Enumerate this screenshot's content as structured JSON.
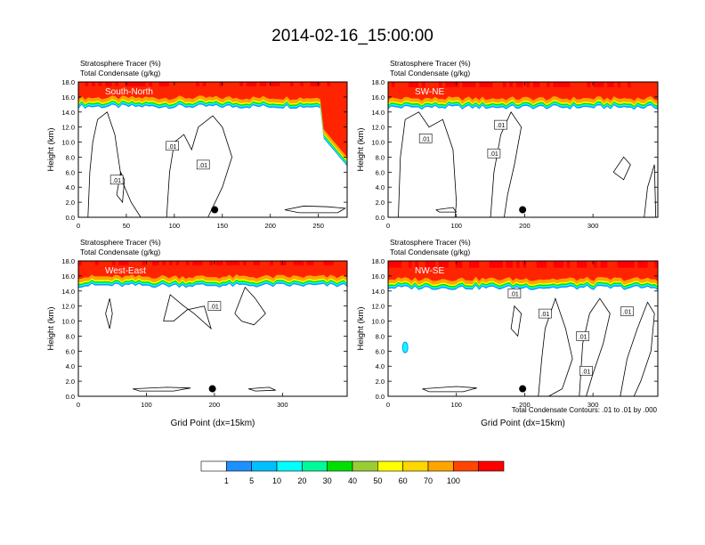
{
  "title": "2014-02-16_15:00:00",
  "contour_note": "Total Condensate Contours: .01 to .01 by .000",
  "colorbar": {
    "labels": [
      "1",
      "5",
      "10",
      "20",
      "30",
      "40",
      "50",
      "60",
      "70",
      "100"
    ],
    "colors": [
      "#ffffff",
      "#1e90ff",
      "#00bfff",
      "#00ffff",
      "#00fa9a",
      "#00e000",
      "#9acd32",
      "#ffff00",
      "#ffd700",
      "#ffa500",
      "#ff4500",
      "#ff0000"
    ]
  },
  "chart_data": [
    {
      "type": "heatmap",
      "panel": "top-left",
      "label": "South-North",
      "title_lines": [
        "Stratosphere Tracer   (%)",
        "Total Condensate   (g/kg)"
      ],
      "ylabel": "Height (km)",
      "xlabel": "",
      "xlim": [
        0,
        280
      ],
      "ylim": [
        0,
        18
      ],
      "xticks": [
        0,
        50,
        100,
        150,
        200,
        250
      ],
      "yticks": [
        "0.0",
        "2.0",
        "4.0",
        "6.0",
        "8.0",
        "10.0",
        "12.0",
        "14.0",
        "16.0",
        "18.0"
      ],
      "tracer_base_km": 15.6,
      "contour_labels": [
        ".01",
        ".01",
        ".01"
      ],
      "marker_x": 142
    },
    {
      "type": "heatmap",
      "panel": "top-right",
      "label": "SW-NE",
      "title_lines": [
        "Stratosphere Tracer   (%)",
        "Total Condensate   (g/kg)"
      ],
      "ylabel": "Height (km)",
      "xlabel": "",
      "xlim": [
        0,
        395
      ],
      "ylim": [
        0,
        18
      ],
      "xticks": [
        0,
        100,
        200,
        300
      ],
      "yticks": [
        "0.0",
        "2.0",
        "4.0",
        "6.0",
        "8.0",
        "10.0",
        "12.0",
        "14.0",
        "16.0",
        "18.0"
      ],
      "tracer_base_km": 15.5,
      "contour_labels": [
        ".01",
        ".01",
        ".01"
      ],
      "marker_x": 197
    },
    {
      "type": "heatmap",
      "panel": "bottom-left",
      "label": "West-East",
      "title_lines": [
        "Stratosphere Tracer   (%)",
        "Total Condensate   (g/kg)"
      ],
      "ylabel": "Height (km)",
      "xlabel": "Grid Point (dx=15km)",
      "xlim": [
        0,
        395
      ],
      "ylim": [
        0,
        18
      ],
      "xticks": [
        0,
        100,
        200,
        300
      ],
      "yticks": [
        "0.0",
        "2.0",
        "4.0",
        "6.0",
        "8.0",
        "10.0",
        "12.0",
        "14.0",
        "16.0",
        "18.0"
      ],
      "tracer_base_km": 15.6,
      "contour_labels": [
        ".01"
      ],
      "marker_x": 197
    },
    {
      "type": "heatmap",
      "panel": "bottom-right",
      "label": "NW-SE",
      "title_lines": [
        "Stratosphere Tracer   (%)",
        "Total Condensate   (g/kg)"
      ],
      "ylabel": "Height (km)",
      "xlabel": "Grid Point (dx=15km)",
      "xlim": [
        0,
        395
      ],
      "ylim": [
        0,
        18
      ],
      "xticks": [
        0,
        100,
        200,
        300
      ],
      "yticks": [
        "0.0",
        "2.0",
        "4.0",
        "6.0",
        "8.0",
        "10.0",
        "12.0",
        "14.0",
        "16.0",
        "18.0"
      ],
      "tracer_base_km": 15.3,
      "contour_labels": [
        ".01",
        ".01",
        ".01",
        ".01",
        ".01"
      ],
      "marker_x": 197
    }
  ]
}
